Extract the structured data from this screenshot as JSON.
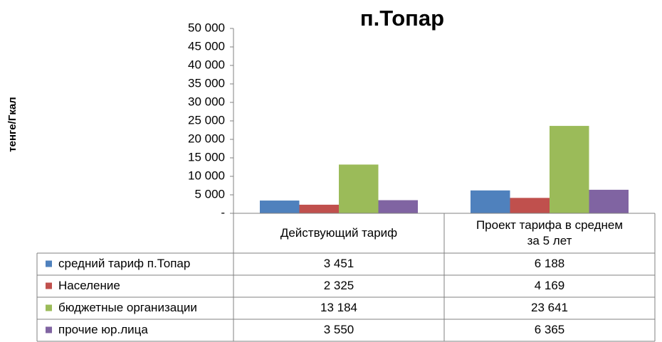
{
  "chart_data": {
    "type": "bar",
    "title": "п.Топар",
    "y_label": "тенге/Гкал",
    "categories": [
      "Действующий тариф",
      "Проект тарифа  в среднем за 5 лет"
    ],
    "series": [
      {
        "name": "средний тариф  п.Топар",
        "color": "#4f81bd",
        "values": [
          3451,
          6188
        ],
        "value_labels": [
          "3 451",
          "6 188"
        ]
      },
      {
        "name": "Население",
        "color": "#c0504d",
        "values": [
          2325,
          4169
        ],
        "value_labels": [
          "2 325",
          "4 169"
        ]
      },
      {
        "name": "бюджетные  организации",
        "color": "#9bbb59",
        "values": [
          13184,
          23641
        ],
        "value_labels": [
          "13 184",
          "23 641"
        ]
      },
      {
        "name": "прочие  юр.лица",
        "color": "#8064a2",
        "values": [
          3550,
          6365
        ],
        "value_labels": [
          "3 550",
          "6 365"
        ]
      }
    ],
    "ylim": [
      0,
      50000
    ],
    "yticks": [
      {
        "value": 0,
        "label": "-"
      },
      {
        "value": 5000,
        "label": "5 000"
      },
      {
        "value": 10000,
        "label": "10 000"
      },
      {
        "value": 15000,
        "label": "15 000"
      },
      {
        "value": 20000,
        "label": "20 000"
      },
      {
        "value": 25000,
        "label": "25 000"
      },
      {
        "value": 30000,
        "label": "30 000"
      },
      {
        "value": 35000,
        "label": "35 000"
      },
      {
        "value": 40000,
        "label": "40 000"
      },
      {
        "value": 45000,
        "label": "45 000"
      },
      {
        "value": 50000,
        "label": "50 000"
      }
    ],
    "grid": false
  }
}
